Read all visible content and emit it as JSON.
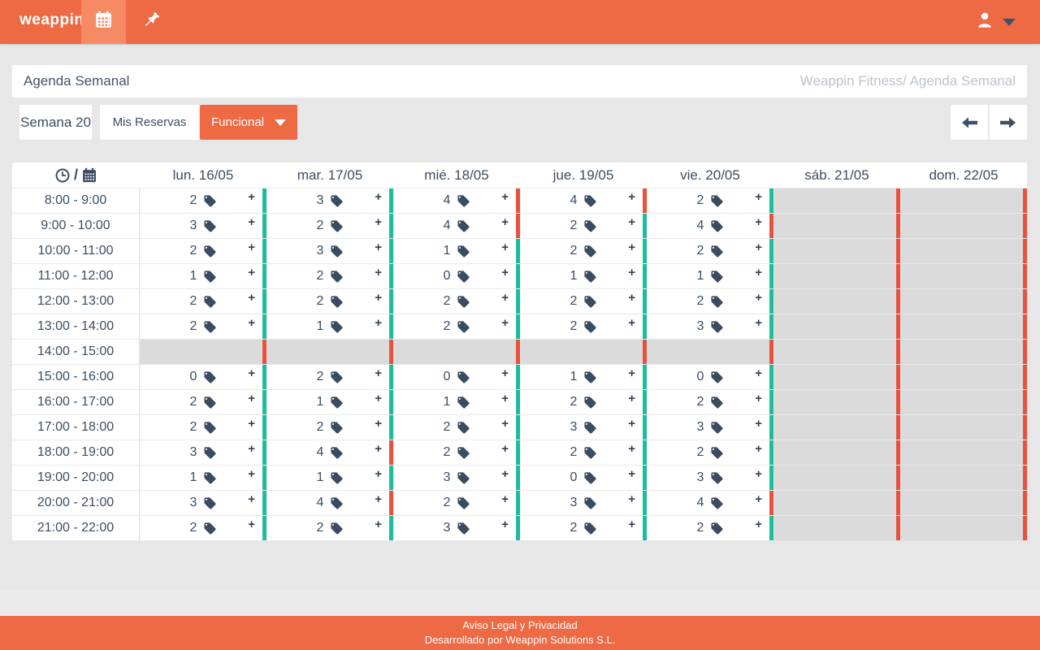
{
  "navbar": {
    "logo": "weappin",
    "logo_mark": "ʼ",
    "tabs": [
      {
        "name": "agenda",
        "icon": "calendar-icon",
        "active": true
      },
      {
        "name": "pin",
        "icon": "pin-icon",
        "active": false
      }
    ]
  },
  "header": {
    "title": "Agenda Semanal",
    "breadcrumb": "Weappin Fitness/ Agenda Semanal"
  },
  "controls": {
    "week": "Semana 20",
    "my_reservations": "Mis Reservas",
    "filter": "Funcional"
  },
  "icons": {
    "plus": "+",
    "slash": "/"
  },
  "table": {
    "days": [
      "lun. 16/05",
      "mar. 17/05",
      "mié. 18/05",
      "jue. 19/05",
      "vie. 20/05",
      "sáb. 21/05",
      "dom. 22/05"
    ],
    "rows": [
      {
        "time": "8:00 - 9:00",
        "cells": [
          {
            "count": 2,
            "strip": "teal"
          },
          {
            "count": 3,
            "strip": "teal"
          },
          {
            "count": 4,
            "strip": "red"
          },
          {
            "count": 4,
            "strip": "red"
          },
          {
            "count": 2,
            "strip": "teal"
          },
          {
            "count": null,
            "strip": "red"
          },
          {
            "count": null,
            "strip": "red"
          }
        ]
      },
      {
        "time": "9:00 - 10:00",
        "cells": [
          {
            "count": 3,
            "strip": "teal"
          },
          {
            "count": 2,
            "strip": "teal"
          },
          {
            "count": 4,
            "strip": "red"
          },
          {
            "count": 2,
            "strip": "teal"
          },
          {
            "count": 4,
            "strip": "red"
          },
          {
            "count": null,
            "strip": "red"
          },
          {
            "count": null,
            "strip": "red"
          }
        ]
      },
      {
        "time": "10:00 - 11:00",
        "cells": [
          {
            "count": 2,
            "strip": "teal"
          },
          {
            "count": 3,
            "strip": "teal"
          },
          {
            "count": 1,
            "strip": "teal"
          },
          {
            "count": 2,
            "strip": "teal"
          },
          {
            "count": 2,
            "strip": "teal"
          },
          {
            "count": null,
            "strip": "red"
          },
          {
            "count": null,
            "strip": "red"
          }
        ]
      },
      {
        "time": "11:00 - 12:00",
        "cells": [
          {
            "count": 1,
            "strip": "teal"
          },
          {
            "count": 2,
            "strip": "teal"
          },
          {
            "count": 0,
            "strip": "teal"
          },
          {
            "count": 1,
            "strip": "teal"
          },
          {
            "count": 1,
            "strip": "teal"
          },
          {
            "count": null,
            "strip": "red"
          },
          {
            "count": null,
            "strip": "red"
          }
        ]
      },
      {
        "time": "12:00 - 13:00",
        "cells": [
          {
            "count": 2,
            "strip": "teal"
          },
          {
            "count": 2,
            "strip": "teal"
          },
          {
            "count": 2,
            "strip": "teal"
          },
          {
            "count": 2,
            "strip": "teal"
          },
          {
            "count": 2,
            "strip": "teal"
          },
          {
            "count": null,
            "strip": "red"
          },
          {
            "count": null,
            "strip": "red"
          }
        ]
      },
      {
        "time": "13:00 - 14:00",
        "cells": [
          {
            "count": 2,
            "strip": "teal"
          },
          {
            "count": 1,
            "strip": "teal"
          },
          {
            "count": 2,
            "strip": "teal"
          },
          {
            "count": 2,
            "strip": "teal"
          },
          {
            "count": 3,
            "strip": "teal"
          },
          {
            "count": null,
            "strip": "red"
          },
          {
            "count": null,
            "strip": "red"
          }
        ]
      },
      {
        "time": "14:00 - 15:00",
        "cells": [
          {
            "count": null,
            "strip": "red"
          },
          {
            "count": null,
            "strip": "red"
          },
          {
            "count": null,
            "strip": "red"
          },
          {
            "count": null,
            "strip": "red"
          },
          {
            "count": null,
            "strip": "red"
          },
          {
            "count": null,
            "strip": "red"
          },
          {
            "count": null,
            "strip": "red"
          }
        ]
      },
      {
        "time": "15:00 - 16:00",
        "cells": [
          {
            "count": 0,
            "strip": "teal"
          },
          {
            "count": 2,
            "strip": "teal"
          },
          {
            "count": 0,
            "strip": "teal"
          },
          {
            "count": 1,
            "strip": "teal"
          },
          {
            "count": 0,
            "strip": "teal"
          },
          {
            "count": null,
            "strip": "red"
          },
          {
            "count": null,
            "strip": "red"
          }
        ]
      },
      {
        "time": "16:00 - 17:00",
        "cells": [
          {
            "count": 2,
            "strip": "teal"
          },
          {
            "count": 1,
            "strip": "teal"
          },
          {
            "count": 1,
            "strip": "teal"
          },
          {
            "count": 2,
            "strip": "teal"
          },
          {
            "count": 2,
            "strip": "teal"
          },
          {
            "count": null,
            "strip": "red"
          },
          {
            "count": null,
            "strip": "red"
          }
        ]
      },
      {
        "time": "17:00 - 18:00",
        "cells": [
          {
            "count": 2,
            "strip": "teal"
          },
          {
            "count": 2,
            "strip": "teal"
          },
          {
            "count": 2,
            "strip": "teal"
          },
          {
            "count": 3,
            "strip": "teal"
          },
          {
            "count": 3,
            "strip": "teal"
          },
          {
            "count": null,
            "strip": "red"
          },
          {
            "count": null,
            "strip": "red"
          }
        ]
      },
      {
        "time": "18:00 - 19:00",
        "cells": [
          {
            "count": 3,
            "strip": "teal"
          },
          {
            "count": 4,
            "strip": "red"
          },
          {
            "count": 2,
            "strip": "teal"
          },
          {
            "count": 2,
            "strip": "teal"
          },
          {
            "count": 2,
            "strip": "teal"
          },
          {
            "count": null,
            "strip": "red"
          },
          {
            "count": null,
            "strip": "red"
          }
        ]
      },
      {
        "time": "19:00 - 20:00",
        "cells": [
          {
            "count": 1,
            "strip": "teal"
          },
          {
            "count": 1,
            "strip": "teal"
          },
          {
            "count": 3,
            "strip": "teal"
          },
          {
            "count": 0,
            "strip": "teal"
          },
          {
            "count": 3,
            "strip": "teal"
          },
          {
            "count": null,
            "strip": "red"
          },
          {
            "count": null,
            "strip": "red"
          }
        ]
      },
      {
        "time": "20:00 - 21:00",
        "cells": [
          {
            "count": 3,
            "strip": "teal"
          },
          {
            "count": 4,
            "strip": "red"
          },
          {
            "count": 2,
            "strip": "teal"
          },
          {
            "count": 3,
            "strip": "teal"
          },
          {
            "count": 4,
            "strip": "red"
          },
          {
            "count": null,
            "strip": "red"
          },
          {
            "count": null,
            "strip": "red"
          }
        ]
      },
      {
        "time": "21:00 - 22:00",
        "cells": [
          {
            "count": 2,
            "strip": "teal"
          },
          {
            "count": 2,
            "strip": "teal"
          },
          {
            "count": 3,
            "strip": "teal"
          },
          {
            "count": 2,
            "strip": "teal"
          },
          {
            "count": 2,
            "strip": "teal"
          },
          {
            "count": null,
            "strip": "red"
          },
          {
            "count": null,
            "strip": "red"
          }
        ]
      }
    ]
  },
  "footer": {
    "legal": "Aviso Legal y Privacidad",
    "developed": "Desarrollado por Weappin Solutions S.L."
  },
  "colors": {
    "orange": "#ED6A45",
    "orange_light": "#F68A65",
    "teal": "#1FBC9C",
    "red": "#E8513D",
    "slate": "#3C4D62",
    "disabled_cell": "#DBDBDB",
    "page_bg": "#E7E7E7"
  }
}
